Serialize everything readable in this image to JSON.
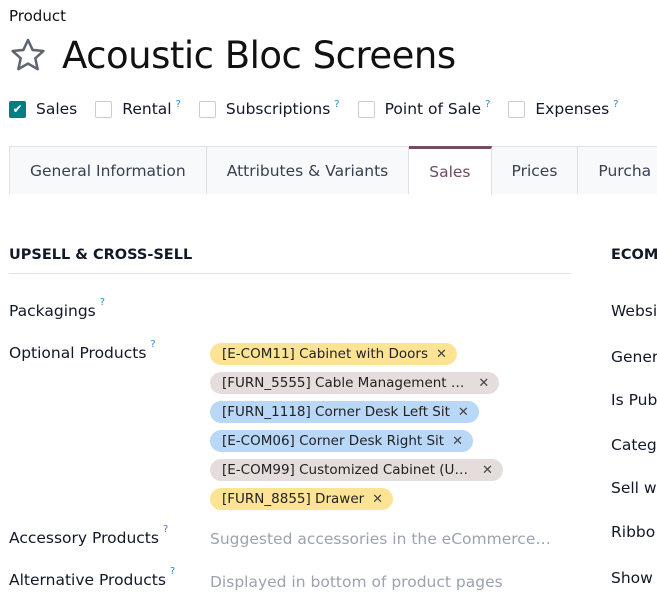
{
  "breadcrumb": "Product",
  "title": "Acoustic Bloc Screens",
  "options": [
    {
      "label": "Sales",
      "checked": true,
      "help": false
    },
    {
      "label": "Rental",
      "checked": false,
      "help": true
    },
    {
      "label": "Subscriptions",
      "checked": false,
      "help": true
    },
    {
      "label": "Point of Sale",
      "checked": false,
      "help": true
    },
    {
      "label": "Expenses",
      "checked": false,
      "help": true
    }
  ],
  "help_mark": "?",
  "tabs": [
    "General Information",
    "Attributes & Variants",
    "Sales",
    "Prices",
    "Purcha"
  ],
  "active_tab": "Sales",
  "section": {
    "title": "UPSELL & CROSS-SELL"
  },
  "fields": {
    "packagings": "Packagings",
    "optional_products": "Optional Products",
    "accessory_products": "Accessory Products",
    "accessory_placeholder": "Suggested accessories in the eCommerce…",
    "alternative_products": "Alternative Products",
    "alternative_placeholder": "Displayed in bottom of product pages"
  },
  "optional_tags": [
    {
      "label": "[E-COM11] Cabinet with Doors",
      "color": "#fde495"
    },
    {
      "label": "[FURN_5555] Cable Management …",
      "color": "#e5dddb"
    },
    {
      "label": "[FURN_1118] Corner Desk Left Sit",
      "color": "#b9d7f7"
    },
    {
      "label": "[E-COM06] Corner Desk Right Sit",
      "color": "#b9d7f7"
    },
    {
      "label": "[E-COM99] Customized Cabinet (U…",
      "color": "#e5dddb"
    },
    {
      "label": "[FURN_8855] Drawer",
      "color": "#fde495"
    }
  ],
  "right_section": {
    "title": "ECOM",
    "labels": [
      "Websi",
      "Gener",
      "Is Pub",
      "Categ",
      "Sell w",
      "Ribbo",
      "Show"
    ]
  },
  "colors": {
    "accent": "#714b67",
    "checkbox": "#017e84",
    "help": "#2c8bc9"
  }
}
